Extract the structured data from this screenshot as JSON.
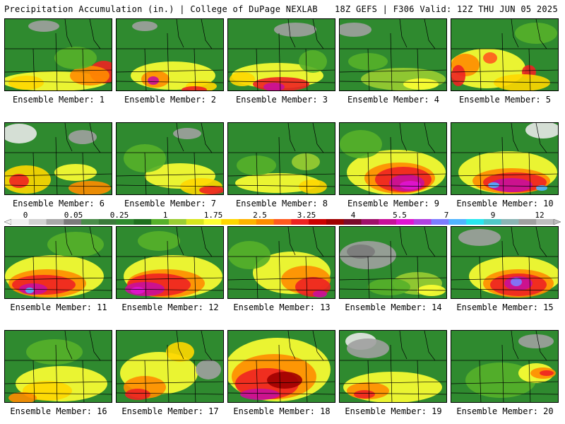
{
  "header": {
    "left": "Precipitation Accumulation (in.) | College of DuPage NEXLAB",
    "right": "18Z GEFS | F306 Valid: 12Z THU JUN 05 2025"
  },
  "legend": {
    "ticks": [
      "0",
      "0.05",
      "0.25",
      "1",
      "1.75",
      "2.5",
      "3.25",
      "4",
      "5.5",
      "7",
      "9",
      "12"
    ],
    "colors": [
      "#f0f0f0",
      "#d2d2d2",
      "#a8a8a8",
      "#7a7a7a",
      "#4a8c4a",
      "#3a7a3a",
      "#2f8a2f",
      "#1f701f",
      "#56b02a",
      "#9acd32",
      "#d8e61e",
      "#ffff33",
      "#ffd700",
      "#ffb300",
      "#ff8c00",
      "#ff5a1e",
      "#ee2222",
      "#cc0000",
      "#a00000",
      "#7a0a2a",
      "#a0106a",
      "#c8109a",
      "#e014d2",
      "#b040e0",
      "#7c7cff",
      "#50b4ff",
      "#28e6f0",
      "#50c8c8",
      "#8ab4b4",
      "#a0a0a0",
      "#bebebe"
    ]
  },
  "panels": [
    {
      "label": "Ensemble Member: 1",
      "base": "#2f8a2f",
      "blobs": [
        [
          "#ffff33",
          70,
          88,
          75,
          14
        ],
        [
          "#ffd700",
          30,
          90,
          25,
          10
        ],
        [
          "#ee2222",
          140,
          75,
          20,
          16
        ],
        [
          "#ff8c00",
          120,
          80,
          28,
          14
        ],
        [
          "#a0a0a0",
          55,
          10,
          22,
          8
        ],
        [
          "#56b02a",
          100,
          55,
          30,
          16
        ]
      ]
    },
    {
      "label": "Ensemble Member: 2",
      "base": "#2f8a2f",
      "blobs": [
        [
          "#ffff33",
          80,
          80,
          60,
          20
        ],
        [
          "#ff8c00",
          55,
          85,
          20,
          12
        ],
        [
          "#c8109a",
          52,
          87,
          8,
          6
        ],
        [
          "#ffd700",
          120,
          95,
          22,
          8
        ],
        [
          "#ee2222",
          110,
          100,
          18,
          5
        ],
        [
          "#a0a0a0",
          40,
          10,
          18,
          7
        ]
      ]
    },
    {
      "label": "Ensemble Member: 3",
      "base": "#2f8a2f",
      "blobs": [
        [
          "#ffff33",
          70,
          80,
          65,
          18
        ],
        [
          "#ee2222",
          75,
          92,
          40,
          10
        ],
        [
          "#c8109a",
          65,
          96,
          15,
          6
        ],
        [
          "#ffd700",
          20,
          85,
          18,
          10
        ],
        [
          "#a0a0a0",
          95,
          15,
          30,
          10
        ],
        [
          "#56b02a",
          120,
          60,
          20,
          16
        ]
      ]
    },
    {
      "label": "Ensemble Member: 4",
      "base": "#2f8a2f",
      "blobs": [
        [
          "#9acd32",
          90,
          85,
          60,
          16
        ],
        [
          "#ffff33",
          115,
          92,
          25,
          8
        ],
        [
          "#a0a0a0",
          20,
          15,
          25,
          10
        ],
        [
          "#56b02a",
          40,
          60,
          28,
          12
        ]
      ]
    },
    {
      "label": "Ensemble Member: 5",
      "base": "#2f8a2f",
      "blobs": [
        [
          "#ffff33",
          50,
          70,
          55,
          28
        ],
        [
          "#ff8c00",
          20,
          65,
          20,
          16
        ],
        [
          "#ee2222",
          10,
          80,
          10,
          15
        ],
        [
          "#ff5a1e",
          55,
          55,
          10,
          8
        ],
        [
          "#ee2222",
          110,
          75,
          10,
          10
        ],
        [
          "#ffd700",
          100,
          90,
          40,
          12
        ],
        [
          "#56b02a",
          120,
          20,
          30,
          15
        ]
      ]
    },
    {
      "label": "Ensemble Member: 6",
      "base": "#2f8a2f",
      "blobs": [
        [
          "#e8e8e8",
          20,
          15,
          25,
          14
        ],
        [
          "#ffd700",
          30,
          80,
          35,
          20
        ],
        [
          "#ee2222",
          20,
          82,
          14,
          10
        ],
        [
          "#ff8c00",
          120,
          92,
          30,
          10
        ],
        [
          "#ffff33",
          100,
          70,
          30,
          12
        ],
        [
          "#a0a0a0",
          110,
          20,
          20,
          10
        ]
      ]
    },
    {
      "label": "Ensemble Member: 7",
      "base": "#2f8a2f",
      "blobs": [
        [
          "#ffff33",
          90,
          75,
          50,
          18
        ],
        [
          "#ffd700",
          120,
          90,
          30,
          12
        ],
        [
          "#ee2222",
          135,
          95,
          18,
          6
        ],
        [
          "#56b02a",
          40,
          50,
          30,
          20
        ],
        [
          "#a0a0a0",
          100,
          15,
          20,
          8
        ]
      ]
    },
    {
      "label": "Ensemble Member: 8",
      "base": "#2f8a2f",
      "blobs": [
        [
          "#ffff33",
          70,
          85,
          60,
          14
        ],
        [
          "#ffd700",
          120,
          90,
          20,
          10
        ],
        [
          "#56b02a",
          40,
          60,
          28,
          14
        ],
        [
          "#9acd32",
          110,
          55,
          20,
          12
        ]
      ]
    },
    {
      "label": "Ensemble Member: 9",
      "base": "#2f8a2f",
      "blobs": [
        [
          "#ffff33",
          80,
          70,
          70,
          32
        ],
        [
          "#ff8c00",
          85,
          78,
          50,
          22
        ],
        [
          "#ee2222",
          90,
          80,
          40,
          18
        ],
        [
          "#c8109a",
          95,
          85,
          25,
          12
        ],
        [
          "#e014d2",
          100,
          88,
          15,
          6
        ],
        [
          "#56b02a",
          30,
          30,
          30,
          20
        ]
      ]
    },
    {
      "label": "Ensemble Member: 10",
      "base": "#2f8a2f",
      "blobs": [
        [
          "#ffff33",
          80,
          70,
          70,
          30
        ],
        [
          "#ff8c00",
          85,
          82,
          55,
          18
        ],
        [
          "#ee2222",
          90,
          84,
          45,
          14
        ],
        [
          "#c8109a",
          85,
          88,
          30,
          10
        ],
        [
          "#50b4ff",
          60,
          88,
          8,
          4
        ],
        [
          "#50b4ff",
          128,
          92,
          8,
          4
        ],
        [
          "#e8e8e8",
          130,
          10,
          25,
          12
        ]
      ]
    },
    {
      "label": "Ensemble Member: 11",
      "base": "#2f8a2f",
      "blobs": [
        [
          "#ffff33",
          70,
          70,
          70,
          30
        ],
        [
          "#ff8c00",
          60,
          80,
          55,
          20
        ],
        [
          "#ee2222",
          55,
          82,
          45,
          14
        ],
        [
          "#c8109a",
          40,
          88,
          20,
          8
        ],
        [
          "#50b4ff",
          35,
          90,
          6,
          4
        ],
        [
          "#56b02a",
          100,
          25,
          40,
          18
        ]
      ]
    },
    {
      "label": "Ensemble Member: 12",
      "base": "#2f8a2f",
      "blobs": [
        [
          "#ffff33",
          80,
          70,
          70,
          30
        ],
        [
          "#ff8c00",
          70,
          80,
          55,
          20
        ],
        [
          "#ee2222",
          60,
          82,
          45,
          16
        ],
        [
          "#c8109a",
          40,
          88,
          28,
          10
        ],
        [
          "#e014d2",
          30,
          90,
          10,
          5
        ],
        [
          "#56b02a",
          60,
          20,
          30,
          14
        ]
      ]
    },
    {
      "label": "Ensemble Member: 13",
      "base": "#2f8a2f",
      "blobs": [
        [
          "#ffff33",
          90,
          65,
          55,
          30
        ],
        [
          "#ff8c00",
          110,
          75,
          35,
          20
        ],
        [
          "#ee2222",
          120,
          85,
          25,
          14
        ],
        [
          "#c8109a",
          130,
          95,
          10,
          5
        ],
        [
          "#56b02a",
          30,
          40,
          30,
          20
        ]
      ]
    },
    {
      "label": "Ensemble Member: 14",
      "base": "#2f8a2f",
      "blobs": [
        [
          "#a0a0a0",
          40,
          40,
          40,
          20
        ],
        [
          "#7a7a7a",
          30,
          35,
          20,
          10
        ],
        [
          "#9acd32",
          110,
          80,
          35,
          16
        ],
        [
          "#ffff33",
          130,
          90,
          20,
          8
        ],
        [
          "#56b02a",
          70,
          85,
          30,
          12
        ]
      ]
    },
    {
      "label": "Ensemble Member: 15",
      "base": "#2f8a2f",
      "blobs": [
        [
          "#ffff33",
          90,
          70,
          65,
          28
        ],
        [
          "#ff8c00",
          95,
          80,
          50,
          20
        ],
        [
          "#ee2222",
          95,
          82,
          40,
          16
        ],
        [
          "#c8109a",
          95,
          80,
          20,
          10
        ],
        [
          "#7c7cff",
          92,
          78,
          8,
          6
        ],
        [
          "#a0a0a0",
          40,
          15,
          30,
          12
        ]
      ]
    },
    {
      "label": "Ensemble Member: 16",
      "base": "#2f8a2f",
      "blobs": [
        [
          "#ffff33",
          80,
          75,
          65,
          25
        ],
        [
          "#ffd700",
          60,
          85,
          35,
          14
        ],
        [
          "#ff8c00",
          25,
          95,
          20,
          8
        ],
        [
          "#56b02a",
          70,
          30,
          40,
          18
        ]
      ]
    },
    {
      "label": "Ensemble Member: 17",
      "base": "#2f8a2f",
      "blobs": [
        [
          "#ffff33",
          60,
          60,
          55,
          30
        ],
        [
          "#ff8c00",
          40,
          80,
          30,
          16
        ],
        [
          "#ee2222",
          30,
          90,
          18,
          8
        ],
        [
          "#ffd700",
          90,
          30,
          20,
          14
        ],
        [
          "#a0a0a0",
          130,
          55,
          18,
          14
        ]
      ]
    },
    {
      "label": "Ensemble Member: 18",
      "base": "#2f8a2f",
      "blobs": [
        [
          "#ffff33",
          70,
          55,
          75,
          45
        ],
        [
          "#ff8c00",
          65,
          65,
          60,
          32
        ],
        [
          "#ee2222",
          55,
          75,
          45,
          22
        ],
        [
          "#c8109a",
          45,
          90,
          28,
          8
        ],
        [
          "#a00000",
          80,
          70,
          25,
          12
        ]
      ]
    },
    {
      "label": "Ensemble Member: 19",
      "base": "#2f8a2f",
      "blobs": [
        [
          "#ffff33",
          75,
          80,
          70,
          22
        ],
        [
          "#ff8c00",
          40,
          85,
          30,
          12
        ],
        [
          "#ee2222",
          35,
          90,
          15,
          6
        ],
        [
          "#e8e8e8",
          30,
          15,
          22,
          12
        ],
        [
          "#a0a0a0",
          40,
          25,
          30,
          14
        ]
      ]
    },
    {
      "label": "Ensemble Member: 20",
      "base": "#2f8a2f",
      "blobs": [
        [
          "#56b02a",
          70,
          70,
          50,
          25
        ],
        [
          "#ffff33",
          120,
          60,
          25,
          14
        ],
        [
          "#ff8c00",
          130,
          60,
          18,
          8
        ],
        [
          "#ee2222",
          135,
          60,
          10,
          4
        ],
        [
          "#a0a0a0",
          120,
          15,
          25,
          10
        ]
      ]
    }
  ]
}
